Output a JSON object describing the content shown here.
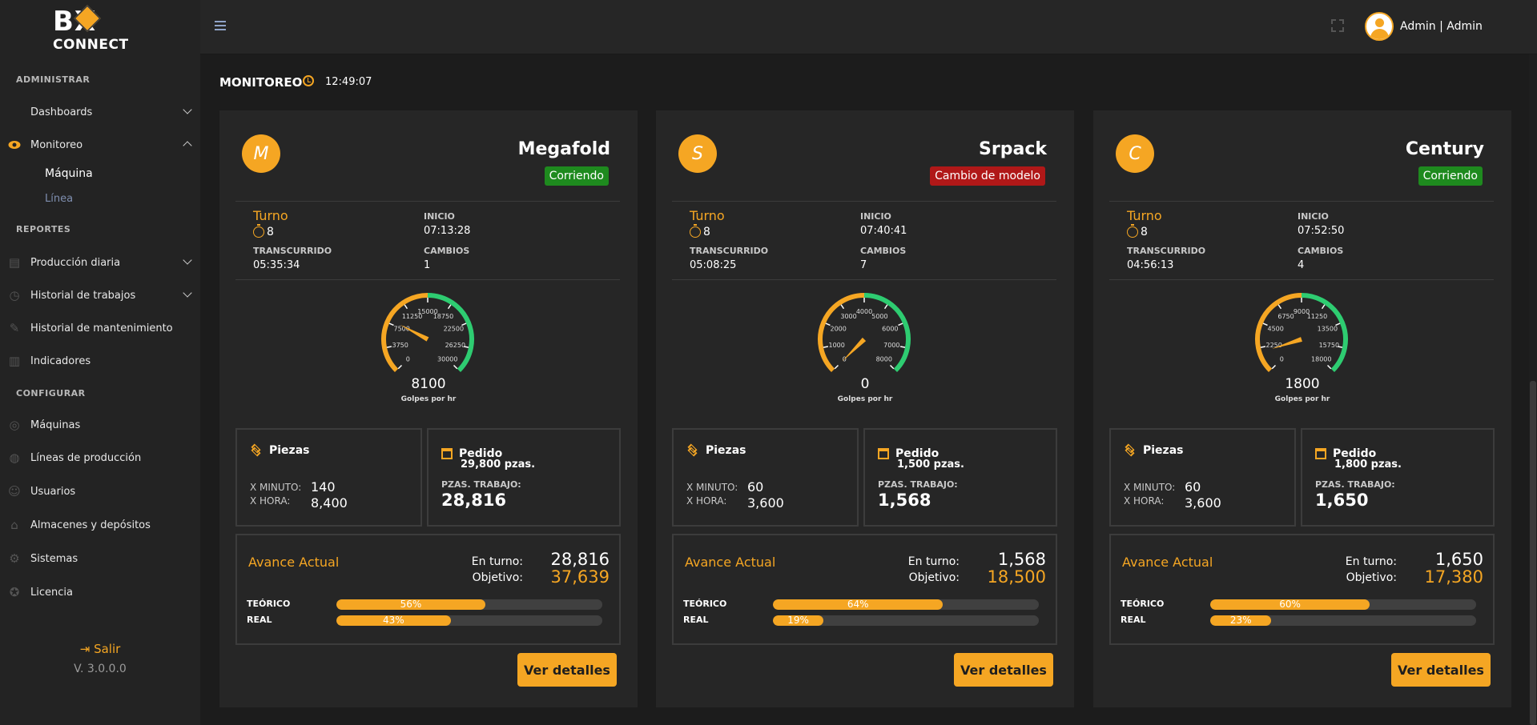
{
  "sidebar": {
    "logo_top": "B X",
    "logo_bottom": "CONNECT",
    "sections": {
      "admin": "ADMINISTRAR",
      "reports": "REPORTES",
      "config": "CONFIGURAR"
    },
    "items": {
      "dashboards": "Dashboards",
      "monitoreo": "Monitoreo",
      "maquina": "Máquina",
      "linea": "Línea",
      "produccion": "Producción diaria",
      "historial_trabajos": "Historial de trabajos",
      "historial_mant": "Historial de mantenimiento",
      "indicadores": "Indicadores",
      "maquinas": "Máquinas",
      "lineas": "Líneas de producción",
      "usuarios": "Usuarios",
      "almacenes": "Almacenes y depósitos",
      "sistemas": "Sistemas",
      "licencia": "Licencia"
    },
    "salir": "Salir",
    "version": "V. 3.0.0.0"
  },
  "header": {
    "user": "Admin | Admin"
  },
  "page": {
    "title": "MONITOREO",
    "time": "12:49:07"
  },
  "labels": {
    "turno": "Turno",
    "inicio": "INICIO",
    "transcurrido": "TRANSCURRIDO",
    "cambios": "CAMBIOS",
    "golpes": "Golpes por hr",
    "piezas": "Piezas",
    "pedido": "Pedido",
    "x_minuto": "X MINUTO:",
    "x_hora": "X HORA:",
    "pzas_trabajo": "PZAS. TRABAJO:",
    "avance": "Avance Actual",
    "en_turno": "En turno:",
    "objetivo": "Objetivo:",
    "teorico": "TEÓRICO",
    "real": "REAL",
    "ver_detalles": "Ver detalles"
  },
  "colors": {
    "accent": "#f5a623",
    "running": "#1e8a1e",
    "changeover": "#b01818",
    "gauge_ok": "#2ecc71"
  },
  "machines": [
    {
      "initial": "M",
      "name": "Megafold",
      "status": "Corriendo",
      "status_color": "#1e8a1e",
      "turno": "8",
      "inicio": "07:13:28",
      "transcurrido": "05:35:34",
      "cambios": "1",
      "gauge_value": "8100",
      "gauge_max": 30000,
      "gauge_ticks": [
        "0",
        "3750",
        "7500",
        "11250",
        "15000",
        "18750",
        "22500",
        "26250",
        "30000"
      ],
      "x_minuto": "140",
      "x_hora": "8,400",
      "pedido": "29,800 pzas.",
      "pzas_trabajo": "28,816",
      "en_turno": "28,816",
      "objetivo": "37,639",
      "teorico_pct": 56,
      "teorico_text": "56%",
      "real_pct": 43,
      "real_text": "43%"
    },
    {
      "initial": "S",
      "name": "Srpack",
      "status": "Cambio de modelo",
      "status_color": "#b01818",
      "turno": "8",
      "inicio": "07:40:41",
      "transcurrido": "05:08:25",
      "cambios": "7",
      "gauge_value": "0",
      "gauge_max": 8000,
      "gauge_ticks": [
        "0",
        "1000",
        "2000",
        "3000",
        "4000",
        "5000",
        "6000",
        "7000",
        "8000"
      ],
      "x_minuto": "60",
      "x_hora": "3,600",
      "pedido": "1,500 pzas.",
      "pzas_trabajo": "1,568",
      "en_turno": "1,568",
      "objetivo": "18,500",
      "teorico_pct": 64,
      "teorico_text": "64%",
      "real_pct": 19,
      "real_text": "19%"
    },
    {
      "initial": "C",
      "name": "Century",
      "status": "Corriendo",
      "status_color": "#1e8a1e",
      "turno": "8",
      "inicio": "07:52:50",
      "transcurrido": "04:56:13",
      "cambios": "4",
      "gauge_value": "1800",
      "gauge_max": 18000,
      "gauge_ticks": [
        "0",
        "2250",
        "4500",
        "6750",
        "9000",
        "11250",
        "13500",
        "15750",
        "18000"
      ],
      "x_minuto": "60",
      "x_hora": "3,600",
      "pedido": "1,800 pzas.",
      "pzas_trabajo": "1,650",
      "en_turno": "1,650",
      "objetivo": "17,380",
      "teorico_pct": 60,
      "teorico_text": "60%",
      "real_pct": 23,
      "real_text": "23%"
    }
  ]
}
